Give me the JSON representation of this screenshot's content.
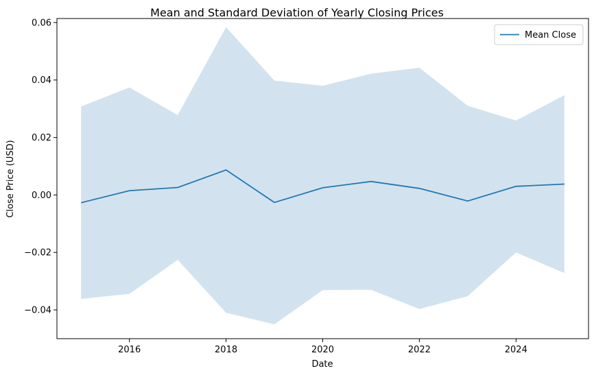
{
  "chart_data": {
    "type": "area",
    "title": "Mean and Standard Deviation of Yearly Closing Prices",
    "xlabel": "Date",
    "ylabel": "Close Price (USD)",
    "x": [
      2015,
      2016,
      2017,
      2018,
      2019,
      2020,
      2021,
      2022,
      2023,
      2024,
      2025
    ],
    "mean": [
      -0.0027,
      0.0015,
      0.0026,
      0.0087,
      -0.0026,
      0.0025,
      0.0047,
      0.0023,
      -0.0021,
      0.003,
      0.0038
    ],
    "upper": [
      0.0308,
      0.0374,
      0.0278,
      0.0584,
      0.0398,
      0.038,
      0.0422,
      0.0443,
      0.031,
      0.0259,
      0.0347
    ],
    "lower": [
      -0.0362,
      -0.0344,
      -0.0226,
      -0.041,
      -0.045,
      -0.0331,
      -0.033,
      -0.0397,
      -0.0352,
      -0.02,
      -0.0272
    ],
    "xlim": [
      2014.5,
      2025.5
    ],
    "ylim": [
      -0.05,
      0.0614
    ],
    "xticks": [
      2016,
      2018,
      2020,
      2022,
      2024
    ],
    "xtick_labels": [
      "2016",
      "2018",
      "2020",
      "2022",
      "2024"
    ],
    "yticks": [
      -0.04,
      -0.02,
      0.0,
      0.02,
      0.04,
      0.06
    ],
    "ytick_labels": [
      "−0.04",
      "−0.02",
      "0.00",
      "0.02",
      "0.04",
      "0.06"
    ],
    "legend": {
      "label": "Mean Close",
      "position": "top-right"
    },
    "grid": false,
    "colors": {
      "line": "#1f77b4",
      "band": "#d2e3ef"
    }
  }
}
